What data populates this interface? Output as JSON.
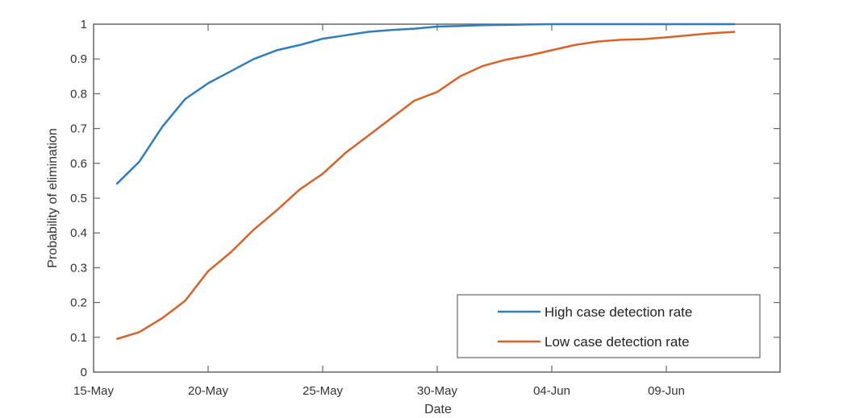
{
  "chart_data": {
    "type": "line",
    "title": "",
    "xlabel": "Date",
    "ylabel": "Probability of elimination",
    "ylim": [
      0,
      1
    ],
    "yticks": [
      "0",
      "0.1",
      "0.2",
      "0.3",
      "0.4",
      "0.5",
      "0.6",
      "0.7",
      "0.8",
      "0.9",
      "1"
    ],
    "xtick_labels": [
      "15-May",
      "20-May",
      "25-May",
      "30-May",
      "04-Jun",
      "09-Jun"
    ],
    "xlim_days": [
      0,
      29.6
    ],
    "grid": false,
    "legend_position": "lower right",
    "x": [
      "16-May",
      "17-May",
      "18-May",
      "19-May",
      "20-May",
      "21-May",
      "22-May",
      "23-May",
      "24-May",
      "25-May",
      "26-May",
      "27-May",
      "28-May",
      "29-May",
      "30-May",
      "31-May",
      "01-Jun",
      "02-Jun",
      "03-Jun",
      "04-Jun",
      "05-Jun",
      "06-Jun",
      "07-Jun",
      "08-Jun",
      "09-Jun",
      "10-Jun",
      "11-Jun",
      "12-Jun"
    ],
    "series": [
      {
        "name": "High case detection rate",
        "color": "#2e7ebf",
        "values": [
          0.54,
          0.605,
          0.705,
          0.785,
          0.83,
          0.865,
          0.9,
          0.925,
          0.94,
          0.958,
          0.968,
          0.978,
          0.983,
          0.987,
          0.993,
          0.995,
          0.997,
          0.998,
          0.999,
          1.0,
          1.0,
          1.0,
          1.0,
          1.0,
          1.0,
          1.0,
          1.0,
          1.0
        ]
      },
      {
        "name": "Low case detection rate",
        "color": "#d9622b",
        "values": [
          0.095,
          0.115,
          0.155,
          0.205,
          0.29,
          0.345,
          0.41,
          0.465,
          0.525,
          0.57,
          0.63,
          0.68,
          0.73,
          0.78,
          0.805,
          0.85,
          0.88,
          0.898,
          0.91,
          0.925,
          0.94,
          0.95,
          0.955,
          0.957,
          0.962,
          0.968,
          0.974,
          0.978
        ]
      }
    ]
  }
}
